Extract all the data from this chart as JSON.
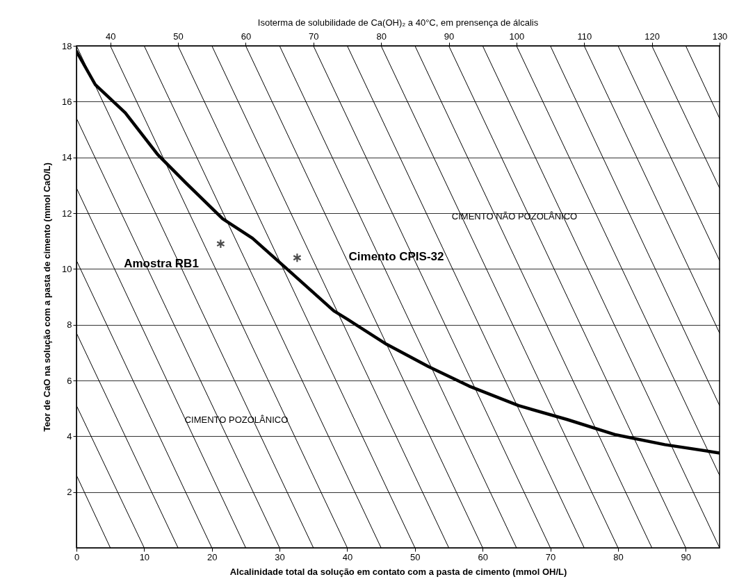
{
  "chart_data": {
    "type": "line",
    "title": "Isoterma de solubilidade de Ca(OH)₂ a 40°C, em prensença de álcalis",
    "xlabel": "Alcalinidade total da solução em contato com a pasta de cimento (mmol OH/L)",
    "ylabel": "Teor de CaO na solução com a pasta de cimento (mmol CaO/L)",
    "xlim": [
      0,
      95
    ],
    "xticks": [
      0,
      10,
      20,
      30,
      40,
      50,
      60,
      70,
      80,
      90
    ],
    "ylim": [
      0,
      18
    ],
    "yticks": [
      2,
      4,
      6,
      8,
      10,
      12,
      14,
      16,
      18
    ],
    "x2lim": [
      35,
      130
    ],
    "x2ticks": [
      40,
      50,
      60,
      70,
      80,
      90,
      100,
      110,
      120,
      130
    ],
    "grid": "y",
    "series": [
      {
        "type": "line",
        "color": "#000000",
        "x": [
          0,
          2.8,
          7.2,
          12.0,
          16.1,
          21.6,
          26.0,
          31.1,
          38.0,
          40.0,
          45.8,
          52.0,
          58.0,
          65.3,
          72.5,
          79.7,
          86.9,
          95
        ],
        "values": [
          17.8,
          16.6,
          15.6,
          14.1,
          13.1,
          11.8,
          11.1,
          10.0,
          8.5,
          8.2,
          7.3,
          6.5,
          5.8,
          5.1,
          4.6,
          4.05,
          3.7,
          3.4
        ]
      },
      {
        "type": "scatter",
        "color": "#000000",
        "marker": "cross",
        "x": [
          21.3,
          32.6
        ],
        "values": [
          10.9,
          10.4
        ]
      },
      {
        "type": "line",
        "color": "#000000",
        "x": [
          0,
          5
        ],
        "values": [
          2.6,
          0
        ]
      },
      {
        "type": "line",
        "color": "#000000",
        "x": [
          0,
          10
        ],
        "values": [
          5.1,
          0
        ]
      },
      {
        "type": "line",
        "color": "#000000",
        "x": [
          0,
          15
        ],
        "values": [
          7.7,
          0
        ]
      },
      {
        "type": "line",
        "color": "#000000",
        "x": [
          0,
          20
        ],
        "values": [
          10.3,
          0
        ]
      },
      {
        "type": "line",
        "color": "#000000",
        "x": [
          0,
          25
        ],
        "values": [
          12.9,
          0
        ]
      },
      {
        "type": "line",
        "color": "#000000",
        "x": [
          0,
          30
        ],
        "values": [
          15.4,
          0
        ]
      },
      {
        "type": "line",
        "color": "#000000",
        "x": [
          0,
          35
        ],
        "values": [
          18,
          0
        ]
      },
      {
        "type": "line",
        "color": "#000000",
        "x": [
          5,
          40
        ],
        "values": [
          18,
          0
        ]
      },
      {
        "type": "line",
        "color": "#000000",
        "x": [
          10,
          45
        ],
        "values": [
          18,
          0
        ]
      },
      {
        "type": "line",
        "color": "#000000",
        "x": [
          15,
          50
        ],
        "values": [
          18,
          0
        ]
      },
      {
        "type": "line",
        "color": "#000000",
        "x": [
          20,
          55
        ],
        "values": [
          18,
          0
        ]
      },
      {
        "type": "line",
        "color": "#000000",
        "x": [
          25,
          60
        ],
        "values": [
          18,
          0
        ]
      },
      {
        "type": "line",
        "color": "#000000",
        "x": [
          30,
          65
        ],
        "values": [
          18,
          0
        ]
      },
      {
        "type": "line",
        "color": "#000000",
        "x": [
          35,
          70
        ],
        "values": [
          18,
          0
        ]
      },
      {
        "type": "line",
        "color": "#000000",
        "x": [
          40,
          75
        ],
        "values": [
          18,
          0
        ]
      },
      {
        "type": "line",
        "color": "#000000",
        "x": [
          45,
          80
        ],
        "values": [
          18,
          0
        ]
      },
      {
        "type": "line",
        "color": "#000000",
        "x": [
          50,
          85
        ],
        "values": [
          18,
          0
        ]
      },
      {
        "type": "line",
        "color": "#000000",
        "x": [
          55,
          90
        ],
        "values": [
          18,
          0
        ]
      },
      {
        "type": "line",
        "color": "#000000",
        "x": [
          60,
          95
        ],
        "values": [
          18,
          0
        ]
      },
      {
        "type": "line",
        "color": "#000000",
        "x": [
          65,
          95
        ],
        "values": [
          18,
          2.6
        ]
      },
      {
        "type": "line",
        "color": "#000000",
        "x": [
          70,
          95
        ],
        "values": [
          18,
          5.1
        ]
      },
      {
        "type": "line",
        "color": "#000000",
        "x": [
          75,
          95
        ],
        "values": [
          18,
          7.7
        ]
      },
      {
        "type": "line",
        "color": "#000000",
        "x": [
          80,
          95
        ],
        "values": [
          18,
          10.3
        ]
      },
      {
        "type": "line",
        "color": "#000000",
        "x": [
          85,
          95
        ],
        "values": [
          18,
          12.9
        ]
      },
      {
        "type": "line",
        "color": "#000000",
        "x": [
          90,
          95
        ],
        "values": [
          18,
          15.4
        ]
      }
    ],
    "annotations": [
      "Amostra RB1",
      "Cimento CPIS-32",
      "CIMENTO NÃO POZOLÂNICO",
      "CIMENTO POZOLÂNICO"
    ]
  }
}
